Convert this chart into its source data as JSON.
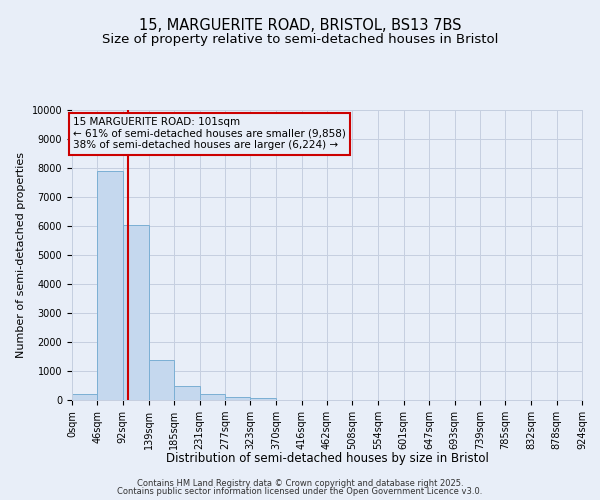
{
  "title": "15, MARGUERITE ROAD, BRISTOL, BS13 7BS",
  "subtitle": "Size of property relative to semi-detached houses in Bristol",
  "xlabel": "Distribution of semi-detached houses by size in Bristol",
  "ylabel": "Number of semi-detached properties",
  "bar_color": "#c5d8ee",
  "bar_edge_color": "#7bafd4",
  "background_color": "#e8eef8",
  "bin_edges": [
    0,
    46,
    92,
    139,
    185,
    231,
    277,
    323,
    370,
    416,
    462,
    508,
    554,
    601,
    647,
    693,
    739,
    785,
    832,
    878,
    924
  ],
  "bar_heights": [
    200,
    7900,
    6050,
    1380,
    490,
    195,
    105,
    65,
    5,
    0,
    0,
    0,
    0,
    0,
    0,
    0,
    0,
    0,
    0,
    0
  ],
  "property_size": 101,
  "red_line_color": "#cc0000",
  "annotation_title": "15 MARGUERITE ROAD: 101sqm",
  "annotation_line2": "← 61% of semi-detached houses are smaller (9,858)",
  "annotation_line3": "38% of semi-detached houses are larger (6,224) →",
  "annotation_box_color": "#cc0000",
  "ylim": [
    0,
    10000
  ],
  "yticks": [
    0,
    1000,
    2000,
    3000,
    4000,
    5000,
    6000,
    7000,
    8000,
    9000,
    10000
  ],
  "footer_line1": "Contains HM Land Registry data © Crown copyright and database right 2025.",
  "footer_line2": "Contains public sector information licensed under the Open Government Licence v3.0.",
  "grid_color": "#c5cfe0",
  "title_fontsize": 10.5,
  "subtitle_fontsize": 9.5,
  "tick_fontsize": 7,
  "ylabel_fontsize": 8,
  "xlabel_fontsize": 8.5,
  "annotation_fontsize": 7.5,
  "footer_fontsize": 6
}
